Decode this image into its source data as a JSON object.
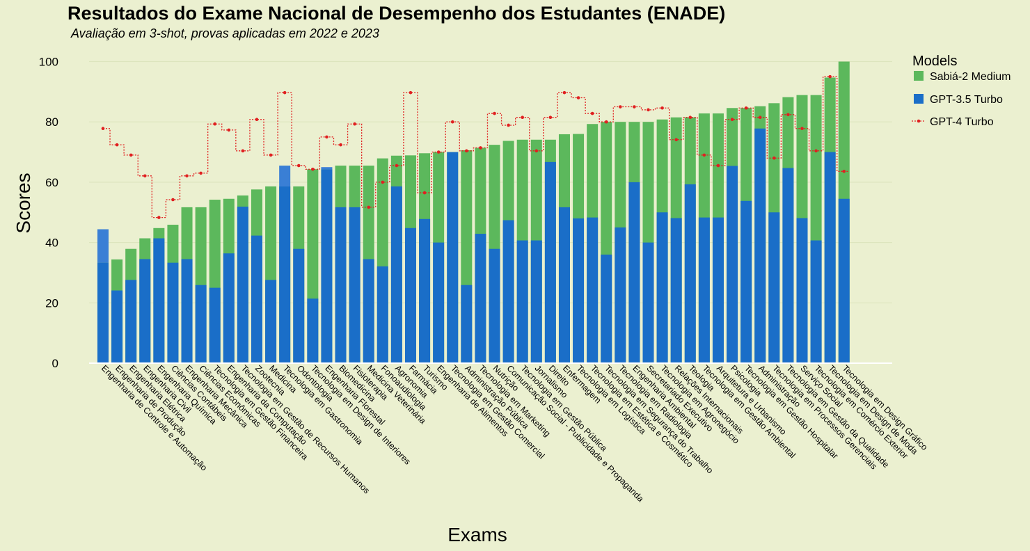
{
  "chart_data": {
    "type": "bar",
    "title": "Resultados do Exame Nacional de Desempenho dos Estudantes (ENADE)",
    "subtitle": "Avaliação em 3-shot, provas aplicadas em 2022 e 2023",
    "xlabel": "Exams",
    "ylabel": "Scores",
    "ylim": [
      0,
      100
    ],
    "yticks": [
      0,
      20,
      40,
      60,
      80,
      100
    ],
    "grid": true,
    "legend": {
      "title": "Models",
      "placement": "right",
      "entries": [
        "Sabiá-2 Medium",
        "GPT-3.5 Turbo",
        "GPT-4 Turbo"
      ]
    },
    "colors": {
      "Sabiá-2 Medium": "#5cb85c",
      "GPT-3.5 Turbo": "#1a6ec8",
      "GPT-3.5 Turbo overflow": "#3a7fd5",
      "GPT-4 Turbo": "#e02020",
      "background": "#ebf0d0",
      "grid": "#dde5be"
    },
    "categories": [
      "Engenharia de Controle e Automação",
      "Engenharia de Produção",
      "Engenharia Elétrica",
      "Engenharia Civil",
      "Engenharia Química",
      "Ciências Contábeis",
      "Engenharia Mecânica",
      "Ciências Econômicas",
      "Tecnologia em Gestão Financeira",
      "Engenharia da Computação",
      "Tecnologia em Gestão de Recursos Humanos",
      "Zootecnia",
      "Medicina",
      "Tecnologia em Gastronomia",
      "Odontologia",
      "Tecnologia em Design de Interiores",
      "Engenharia Florestal",
      "Biomedicina",
      "Fisioterapia",
      "Medicina Veterinária",
      "Fonoaudiologia",
      "Agronomia",
      "Farmácia",
      "Turismo",
      "Engenharia de Alimentos",
      "Tecnologia em Gestão Comercial",
      "Administração Pública",
      "Tecnologia em Marketing",
      "Nutrição",
      "Comunicação Social - Publicidade e Propaganda",
      "Tecnologia em Gestão Pública",
      "Jornalismo",
      "Direito",
      "Enfermagem",
      "Tecnologia em Logística",
      "Tecnologia em Estética e Cosmético",
      "Tecnologia em Segurança do Trabalho",
      "Tecnologia em Radiologia",
      "Engenharia Ambiental",
      "Secretariado Executivo",
      "Tecnologia em Agronegócio",
      "Relações Internacionais",
      "Teologia",
      "Tecnologia em Gestão Ambiental",
      "Arquitetura e Urbanismo",
      "Psicologia",
      "Tecnologia em Gestão Hospitalar",
      "Administração",
      "Tecnologia em Processos Gerenciais",
      "Tecnologia em Gestão da Qualidade",
      "Serviço Social",
      "Tecnologia em Comércio Exterior",
      "Tecnologia em Design de Moda",
      "Tecnologia em Design Gráfico"
    ],
    "series": [
      {
        "name": "Sabiá-2 Medium",
        "values": [
          33.3,
          34.4,
          37.9,
          41.4,
          44.8,
          45.9,
          51.7,
          51.7,
          54.2,
          54.5,
          55.6,
          57.6,
          58.6,
          58.6,
          58.6,
          64.3,
          64.3,
          65.5,
          65.5,
          65.5,
          67.9,
          68.8,
          68.9,
          69.6,
          70.0,
          70.0,
          70.6,
          71.4,
          72.4,
          73.7,
          74.1,
          74.1,
          74.1,
          75.9,
          76.0,
          79.3,
          80.0,
          80.0,
          80.0,
          80.0,
          80.8,
          81.5,
          81.5,
          82.8,
          82.8,
          84.6,
          84.6,
          85.2,
          86.2,
          88.2,
          88.9,
          88.9,
          94.7,
          100.0
        ]
      },
      {
        "name": "GPT-3.5 Turbo",
        "values": [
          44.4,
          24.1,
          27.6,
          34.5,
          41.4,
          33.3,
          34.5,
          25.9,
          25.0,
          36.4,
          51.9,
          42.3,
          27.6,
          65.5,
          37.9,
          21.4,
          65.0,
          51.7,
          51.7,
          34.5,
          32.1,
          58.6,
          44.8,
          47.8,
          40.0,
          70.0,
          25.9,
          42.9,
          37.9,
          47.4,
          40.7,
          40.7,
          66.7,
          51.7,
          48.0,
          48.3,
          36.0,
          45.0,
          60.0,
          40.0,
          50.0,
          48.1,
          59.3,
          48.3,
          48.3,
          65.4,
          53.8,
          77.8,
          50.0,
          64.7,
          48.1,
          40.7,
          70.0,
          54.5
        ]
      },
      {
        "name": "GPT-4 Turbo",
        "values": [
          77.8,
          72.4,
          69.0,
          62.1,
          48.3,
          54.2,
          62.1,
          63.0,
          79.3,
          77.3,
          70.4,
          80.8,
          69.0,
          89.7,
          65.5,
          64.3,
          75.0,
          72.4,
          79.3,
          51.7,
          60.0,
          65.5,
          89.7,
          56.5,
          70.0,
          80.0,
          70.4,
          71.4,
          82.8,
          78.9,
          81.5,
          70.4,
          81.5,
          89.7,
          88.0,
          82.8,
          80.0,
          85.0,
          85.0,
          84.0,
          84.6,
          74.1,
          81.5,
          69.0,
          65.5,
          80.8,
          84.6,
          81.5,
          68.0,
          82.4,
          77.8,
          70.4,
          95.0,
          63.6
        ]
      }
    ]
  }
}
